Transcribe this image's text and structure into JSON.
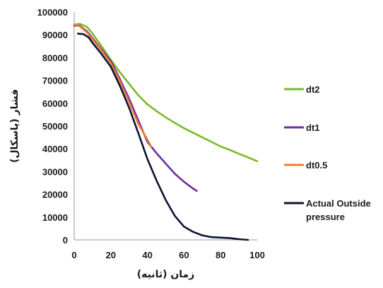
{
  "chart_data": {
    "type": "line",
    "xlabel": "زمان (ثانیه)",
    "ylabel": "فشار (پاسکال)",
    "xlim": [
      0,
      100
    ],
    "ylim": [
      0,
      100000
    ],
    "x_ticks": [
      "0",
      "20",
      "40",
      "60",
      "80",
      "100"
    ],
    "y_ticks": [
      "0",
      "10000",
      "20000",
      "30000",
      "40000",
      "50000",
      "60000",
      "70000",
      "80000",
      "90000",
      "100000"
    ],
    "grid": false,
    "legend_position": "right",
    "series": [
      {
        "name": "dt2",
        "color": "#7ab929",
        "x": [
          0,
          3,
          7,
          10,
          15,
          20,
          25,
          30,
          35,
          40,
          45,
          50,
          55,
          60,
          65,
          70,
          75,
          80,
          85,
          90,
          95,
          100
        ],
        "y": [
          94500,
          94800,
          93500,
          90500,
          85000,
          79000,
          73500,
          68500,
          63500,
          59500,
          56500,
          53800,
          51300,
          49000,
          47000,
          45000,
          43000,
          41000,
          39500,
          37800,
          36200,
          34500
        ]
      },
      {
        "name": "dt1",
        "color": "#6a2fa2",
        "x": [
          0,
          3,
          7,
          10,
          15,
          20,
          25,
          30,
          35,
          40,
          45,
          50,
          55,
          60,
          65,
          67
        ],
        "y": [
          94000,
          94000,
          91500,
          88500,
          83500,
          78500,
          70500,
          62000,
          52500,
          43000,
          38000,
          33500,
          29000,
          25500,
          22500,
          21500
        ]
      },
      {
        "name": "dt0.5",
        "color": "#ee7d2f",
        "x": [
          0,
          3,
          7,
          10,
          15,
          20,
          25,
          30,
          35,
          40,
          42
        ],
        "y": [
          94500,
          93800,
          91000,
          88000,
          83000,
          77500,
          69500,
          60500,
          51000,
          44000,
          41000
        ]
      },
      {
        "name": "Actual Outside pressure",
        "color": "#0c1436",
        "x": [
          2,
          5,
          8,
          10,
          15,
          20,
          25,
          30,
          35,
          40,
          45,
          50,
          55,
          60,
          65,
          70,
          75,
          80,
          85,
          90,
          95
        ],
        "y": [
          90500,
          90300,
          88800,
          86500,
          81500,
          76000,
          67500,
          58000,
          47000,
          35500,
          26000,
          17500,
          10500,
          5800,
          3500,
          2000,
          1200,
          1000,
          800,
          300,
          0
        ]
      }
    ]
  }
}
